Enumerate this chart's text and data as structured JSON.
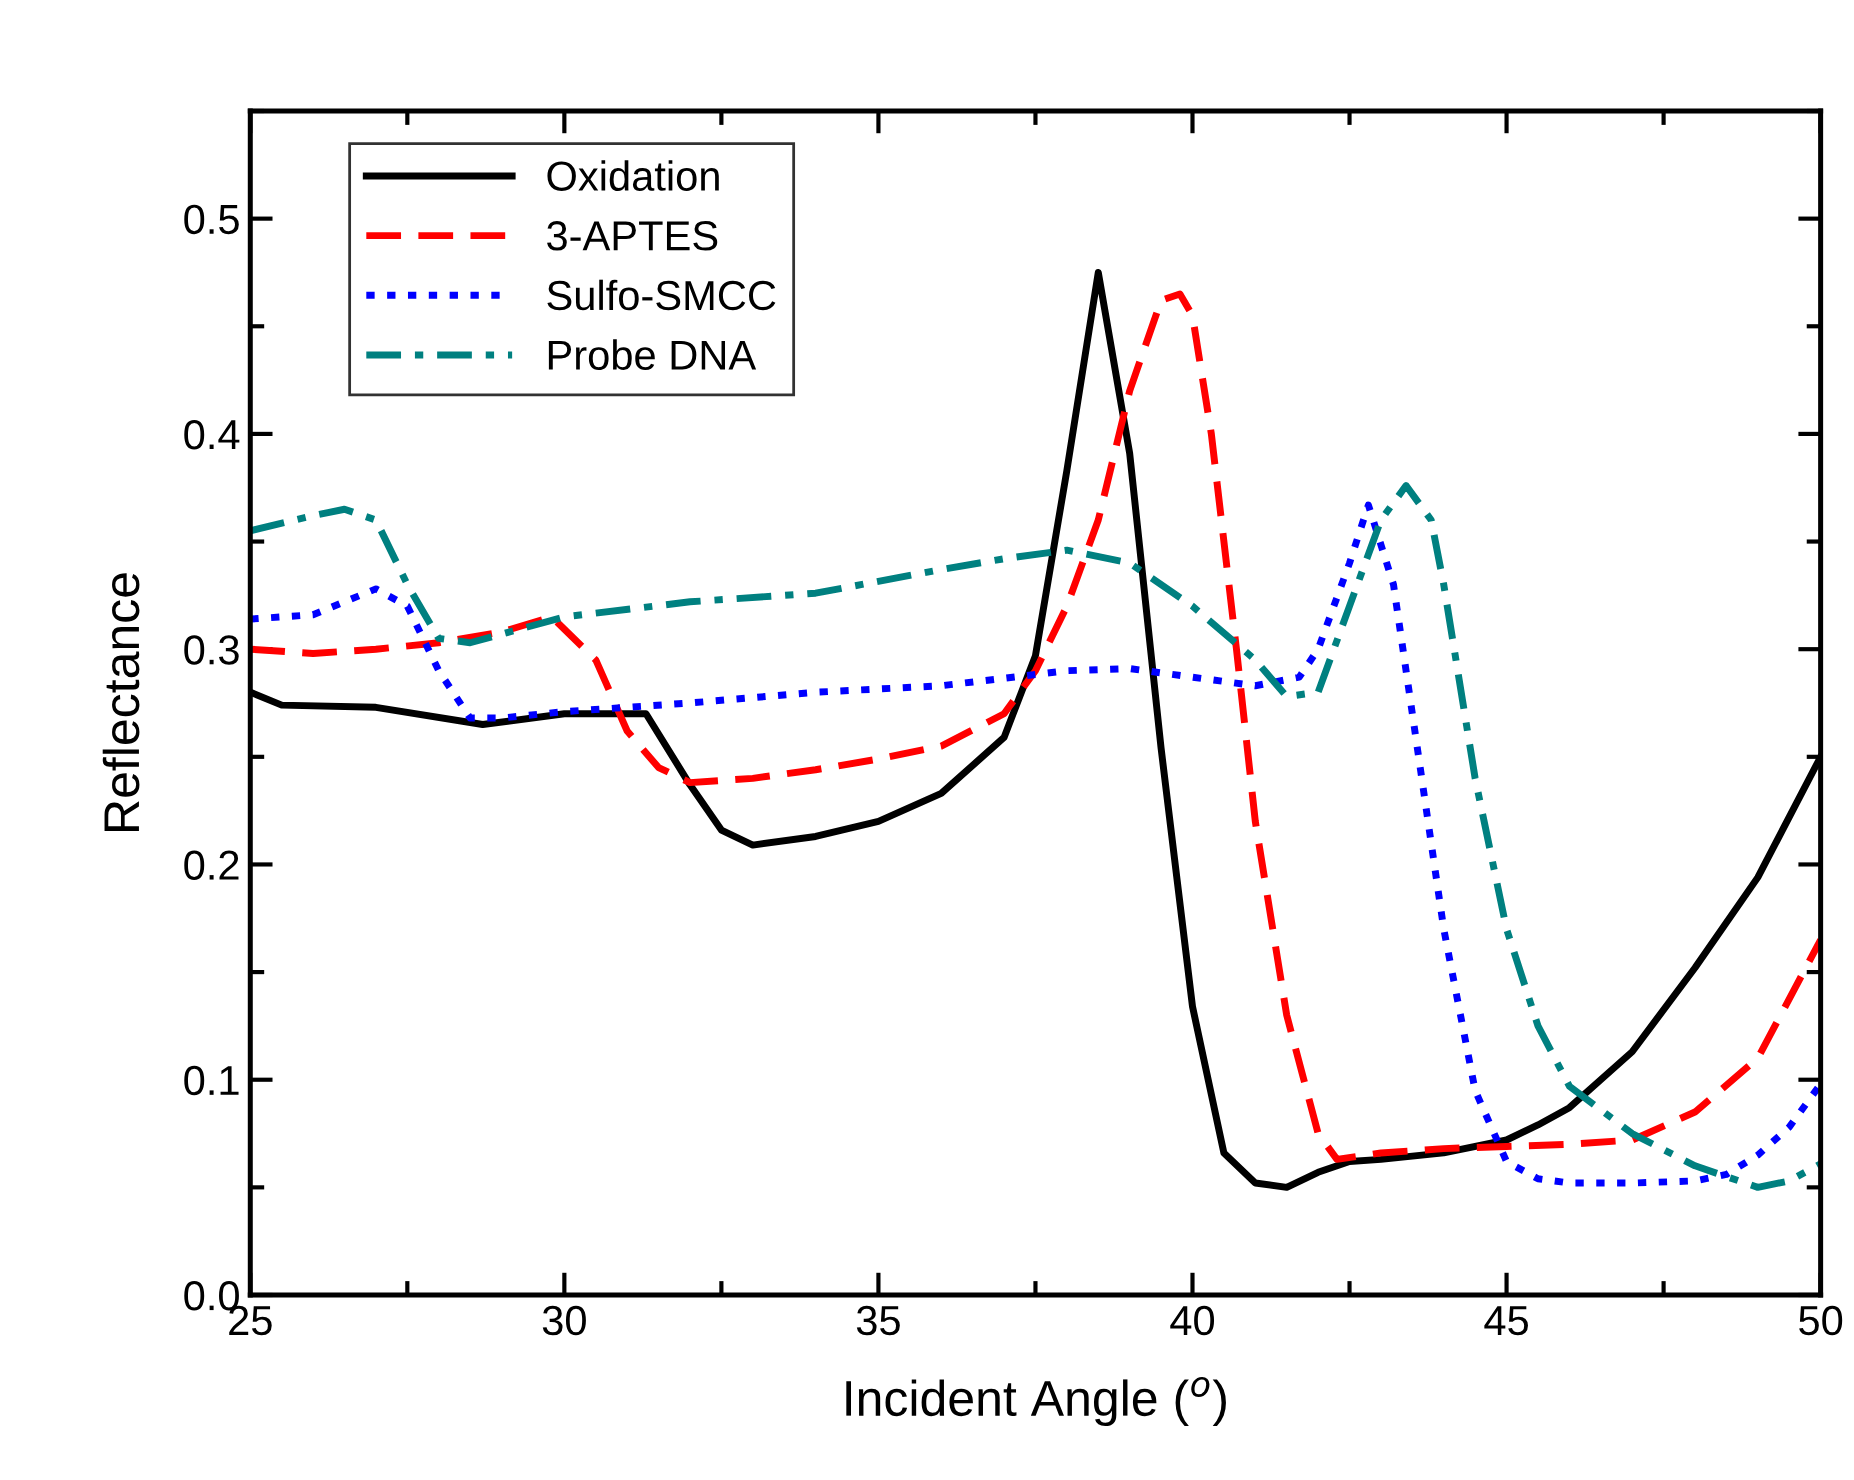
{
  "chart_data": {
    "type": "line",
    "xlabel": "Incident Angle ($^{o}$)",
    "ylabel": "Reflectance",
    "xlim": [
      25,
      50
    ],
    "xticks": [
      25,
      30,
      35,
      40,
      45,
      50
    ],
    "ylim": [
      0.0,
      0.55
    ],
    "yticks": [
      {
        "value": 0.0,
        "label": "0.0"
      },
      0.1,
      0.2,
      0.3,
      0.4,
      0.5
    ],
    "legend": "top left",
    "grid": false,
    "series": [
      {
        "name": "Oxidation",
        "color": "#000000",
        "line_style": "solid",
        "x": [
          25,
          25.5,
          27,
          28.7,
          30,
          31.3,
          32,
          32.5,
          33,
          34,
          35,
          36,
          37,
          37.5,
          38,
          38.5,
          39,
          39.5,
          40,
          40.5,
          41,
          41.5,
          42,
          42.5,
          43,
          44,
          45,
          45.5,
          46,
          47,
          48,
          49,
          50
        ],
        "values": [
          0.28,
          0.274,
          0.273,
          0.265,
          0.27,
          0.27,
          0.237,
          0.216,
          0.209,
          0.213,
          0.22,
          0.233,
          0.259,
          0.297,
          0.383,
          0.475,
          0.391,
          0.254,
          0.134,
          0.066,
          0.052,
          0.05,
          0.057,
          0.062,
          0.063,
          0.066,
          0.072,
          0.079,
          0.087,
          0.113,
          0.152,
          0.194,
          0.25
        ]
      },
      {
        "name": "3-APTES",
        "color": "#ff0000",
        "line_style": "dashed",
        "x": [
          25,
          26,
          27,
          28,
          29,
          29.8,
          30.5,
          31,
          31.5,
          32,
          33,
          34,
          35,
          36,
          37,
          37.5,
          38,
          38.5,
          39,
          39.5,
          39.8,
          40,
          40.3,
          40.7,
          41,
          41.5,
          42,
          42.3,
          43,
          44,
          45,
          46,
          47,
          48,
          49,
          50
        ],
        "values": [
          0.3,
          0.298,
          0.3,
          0.303,
          0.308,
          0.315,
          0.295,
          0.262,
          0.245,
          0.238,
          0.24,
          0.244,
          0.249,
          0.255,
          0.27,
          0.29,
          0.32,
          0.36,
          0.42,
          0.462,
          0.465,
          0.455,
          0.4,
          0.3,
          0.22,
          0.13,
          0.075,
          0.063,
          0.066,
          0.068,
          0.069,
          0.07,
          0.072,
          0.085,
          0.11,
          0.165
        ]
      },
      {
        "name": "Sulfo-SMCC",
        "color": "#0000ff",
        "line_style": "dotted",
        "x": [
          25,
          26,
          27,
          27.5,
          28,
          28.5,
          29,
          30,
          32,
          34,
          36,
          38,
          39,
          40,
          41,
          41.7,
          42,
          42.5,
          42.8,
          43.2,
          43.6,
          44,
          44.5,
          45,
          45.5,
          46,
          47,
          48,
          48.5,
          49,
          49.5,
          50
        ],
        "values": [
          0.314,
          0.316,
          0.328,
          0.32,
          0.29,
          0.268,
          0.268,
          0.271,
          0.275,
          0.28,
          0.283,
          0.29,
          0.291,
          0.287,
          0.283,
          0.287,
          0.3,
          0.34,
          0.367,
          0.33,
          0.25,
          0.17,
          0.095,
          0.062,
          0.054,
          0.052,
          0.052,
          0.053,
          0.056,
          0.065,
          0.078,
          0.098
        ]
      },
      {
        "name": "Probe DNA",
        "color": "#008080",
        "line_style": "dashdot",
        "x": [
          25,
          26,
          26.5,
          27,
          27.5,
          28,
          28.5,
          30,
          32,
          34,
          36,
          37,
          38,
          39,
          40,
          41,
          41.5,
          42,
          42.5,
          43,
          43.4,
          43.8,
          44,
          44.5,
          45,
          45.5,
          46,
          47,
          48,
          49,
          49.5,
          50
        ],
        "values": [
          0.355,
          0.362,
          0.365,
          0.36,
          0.33,
          0.305,
          0.303,
          0.315,
          0.322,
          0.326,
          0.337,
          0.342,
          0.346,
          0.34,
          0.32,
          0.295,
          0.278,
          0.28,
          0.32,
          0.36,
          0.376,
          0.36,
          0.33,
          0.24,
          0.17,
          0.125,
          0.097,
          0.075,
          0.06,
          0.05,
          0.053,
          0.061
        ]
      }
    ]
  }
}
